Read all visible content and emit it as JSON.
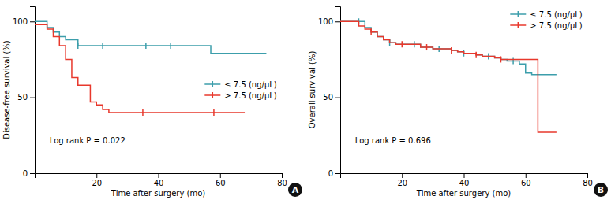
{
  "chart_data": [
    {
      "type": "step",
      "x_label": "Time after surgery (mo)",
      "y_label": "Disease-free survival (%)",
      "xlim": [
        0,
        80
      ],
      "ylim": [
        0,
        110
      ],
      "xticks": [
        20,
        40,
        60,
        80
      ],
      "yticks": [
        0,
        50,
        100
      ],
      "grid": false,
      "legend": "right",
      "annotations": [
        "Log rank P = 0.022",
        "A"
      ],
      "series": [
        {
          "name": "≤ 7.5 (ng/μL)",
          "color": "#3c9eab",
          "x": [
            0,
            2,
            4,
            6,
            8,
            10,
            14,
            16,
            18,
            22,
            24,
            55,
            57,
            60,
            68,
            75
          ],
          "values": [
            100,
            100,
            96,
            93,
            90,
            88,
            84,
            84,
            84,
            84,
            84,
            84,
            79,
            79,
            79,
            79
          ],
          "censor_x": [
            14,
            22,
            36,
            44
          ],
          "censor_y": [
            84,
            84,
            84,
            84
          ]
        },
        {
          "name": "> 7.5 (ng/μL)",
          "color": "#e8382c",
          "x": [
            0,
            4,
            6,
            8,
            10,
            12,
            14,
            16,
            18,
            20,
            22,
            24,
            27,
            30,
            32,
            55,
            58,
            60,
            68
          ],
          "values": [
            98,
            95,
            90,
            84,
            75,
            63,
            58,
            58,
            47,
            45,
            42,
            40,
            40,
            40,
            40,
            40,
            40,
            40,
            40
          ],
          "censor_x": [
            35,
            58
          ],
          "censor_y": [
            40,
            40
          ]
        }
      ]
    },
    {
      "type": "step",
      "x_label": "Time after surgery (mo)",
      "y_label": "Overall survival (%)",
      "xlim": [
        0,
        80
      ],
      "ylim": [
        0,
        110
      ],
      "xticks": [
        20,
        40,
        60,
        80
      ],
      "yticks": [
        0,
        50,
        100
      ],
      "grid": false,
      "legend": "upper right",
      "annotations": [
        "Log rank P = 0.696",
        "B"
      ],
      "series": [
        {
          "name": "≤ 7.5 (ng/μL)",
          "color": "#3c9eab",
          "x": [
            0,
            4,
            8,
            10,
            12,
            14,
            16,
            18,
            22,
            26,
            28,
            30,
            34,
            36,
            38,
            40,
            42,
            44,
            46,
            48,
            50,
            52,
            54,
            56,
            58,
            60,
            62,
            64,
            70
          ],
          "values": [
            100,
            100,
            96,
            93,
            90,
            88,
            86,
            85,
            85,
            83,
            83,
            82,
            82,
            81,
            80,
            79,
            79,
            78,
            77,
            77,
            76,
            75,
            74,
            74,
            72,
            66,
            65,
            65,
            65
          ],
          "censor_x": [
            6,
            16,
            24,
            32,
            40,
            48,
            56
          ],
          "censor_y": [
            100,
            86,
            85,
            82,
            79,
            77,
            74
          ]
        },
        {
          "name": "> 7.5 (ng/μL)",
          "color": "#e8382c",
          "x": [
            0,
            6,
            8,
            10,
            12,
            14,
            16,
            18,
            22,
            26,
            28,
            30,
            34,
            36,
            38,
            40,
            42,
            44,
            46,
            48,
            50,
            52,
            54,
            56,
            58,
            60,
            62,
            64,
            66,
            70
          ],
          "values": [
            100,
            97,
            95,
            93,
            90,
            88,
            86,
            85,
            85,
            83,
            83,
            82,
            82,
            81,
            80,
            79,
            79,
            78,
            77,
            77,
            76,
            75,
            75,
            75,
            75,
            75,
            75,
            27,
            27,
            27
          ],
          "censor_x": [
            10,
            20,
            28,
            36,
            44,
            52
          ],
          "censor_y": [
            93,
            85,
            83,
            81,
            78,
            75
          ]
        }
      ]
    }
  ]
}
